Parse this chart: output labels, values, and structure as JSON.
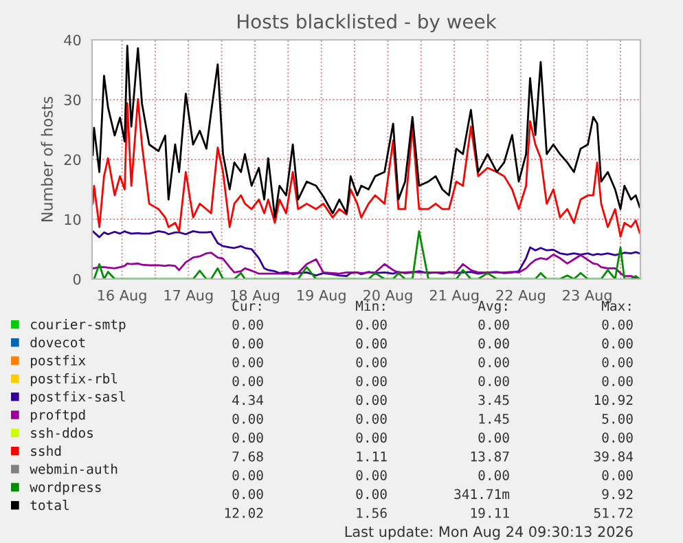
{
  "chart_data": {
    "type": "line",
    "title": "Hosts blacklisted - by week",
    "ylabel": "Number of hosts",
    "x": [
      "2026-08-16T01:26",
      "2026-08-16T01:55",
      "2026-08-16T03:50",
      "2026-08-16T05:31",
      "2026-08-16T06:58",
      "2026-08-16T09:22",
      "2026-08-16T11:17",
      "2026-08-16T12:58",
      "2026-08-16T13:55",
      "2026-08-16T15:22",
      "2026-08-16T17:46",
      "2026-08-16T19:12",
      "2026-08-16T21:50",
      "2026-08-17T01:12",
      "2026-08-17T03:36",
      "2026-08-17T04:48",
      "2026-08-17T07:12",
      "2026-08-17T08:38",
      "2026-08-17T11:02",
      "2026-08-17T13:41",
      "2026-08-17T16:05",
      "2026-08-17T18:29",
      "2026-08-17T20:10",
      "2026-08-17T22:34",
      "2026-08-18T00:29",
      "2026-08-18T02:53",
      "2026-08-18T04:34",
      "2026-08-18T06:58",
      "2026-08-18T08:24",
      "2026-08-18T10:48",
      "2026-08-18T13:26",
      "2026-08-18T15:22",
      "2026-08-18T16:48",
      "2026-08-18T19:12",
      "2026-08-18T20:53",
      "2026-08-18T23:17",
      "2026-08-19T01:41",
      "2026-08-19T03:36",
      "2026-08-19T06:43",
      "2026-08-19T10:05",
      "2026-08-19T12:43",
      "2026-08-19T16:05",
      "2026-08-19T18:29",
      "2026-08-19T21:07",
      "2026-08-19T22:34",
      "2026-08-20T00:58",
      "2026-08-20T02:24",
      "2026-08-20T05:02",
      "2026-08-20T07:26",
      "2026-08-20T10:48",
      "2026-08-20T13:55",
      "2026-08-20T15:50",
      "2026-08-20T18:14",
      "2026-08-20T20:53",
      "2026-08-20T23:17",
      "2026-08-21T02:38",
      "2026-08-21T05:17",
      "2026-08-21T07:41",
      "2026-08-21T10:05",
      "2026-08-21T12:43",
      "2026-08-21T15:07",
      "2026-08-21T18:00",
      "2026-08-21T20:38",
      "2026-08-22T00:00",
      "2026-08-22T03:22",
      "2026-08-22T06:00",
      "2026-08-22T08:53",
      "2026-08-22T11:17",
      "2026-08-22T13:55",
      "2026-08-22T15:22",
      "2026-08-22T17:17",
      "2026-08-22T19:12",
      "2026-08-22T21:22",
      "2026-08-22T23:46",
      "2026-08-23T02:10",
      "2026-08-23T04:48",
      "2026-08-23T07:12",
      "2026-08-23T09:36",
      "2026-08-23T12:14",
      "2026-08-23T14:10",
      "2026-08-23T15:36",
      "2026-08-23T17:02",
      "2026-08-23T19:26",
      "2026-08-23T22:05",
      "2026-08-24T00:00",
      "2026-08-24T01:26",
      "2026-08-24T03:50",
      "2026-08-24T05:31",
      "2026-08-24T06:58"
    ],
    "xlim": [
      "2026-08-16T01:12",
      "2026-08-24T07:12"
    ],
    "xticks": [
      {
        "value": "2026-08-16T12:00",
        "label": "16 Aug"
      },
      {
        "value": "2026-08-17T00:00",
        "label": null
      },
      {
        "value": "2026-08-17T12:00",
        "label": "17 Aug"
      },
      {
        "value": "2026-08-18T00:00",
        "label": null
      },
      {
        "value": "2026-08-18T12:00",
        "label": "18 Aug"
      },
      {
        "value": "2026-08-19T00:00",
        "label": null
      },
      {
        "value": "2026-08-19T12:00",
        "label": "19 Aug"
      },
      {
        "value": "2026-08-20T00:00",
        "label": null
      },
      {
        "value": "2026-08-20T12:00",
        "label": "20 Aug"
      },
      {
        "value": "2026-08-21T00:00",
        "label": null
      },
      {
        "value": "2026-08-21T12:00",
        "label": "21 Aug"
      },
      {
        "value": "2026-08-22T00:00",
        "label": null
      },
      {
        "value": "2026-08-22T12:00",
        "label": "22 Aug"
      },
      {
        "value": "2026-08-23T00:00",
        "label": null
      },
      {
        "value": "2026-08-23T12:00",
        "label": "23 Aug"
      },
      {
        "value": "2026-08-24T00:00",
        "label": null
      }
    ],
    "ylim": [
      0,
      40
    ],
    "yticks": [
      0,
      10,
      20,
      30,
      40
    ],
    "grid": true,
    "legend": "bottom",
    "series": [
      {
        "name": "courier-smtp",
        "color": "#00cc00",
        "values": [
          null,
          null,
          null,
          null,
          null,
          null,
          null,
          null,
          null,
          null,
          null,
          null,
          null,
          null,
          null,
          null,
          null,
          null,
          null,
          null,
          null,
          null,
          null,
          null,
          null,
          null,
          null,
          null,
          null,
          null,
          null,
          null,
          null,
          null,
          null,
          null,
          null,
          null,
          null,
          null,
          null,
          null,
          null,
          null,
          null,
          null,
          null,
          null,
          null,
          null,
          null,
          null,
          null,
          null,
          null,
          null,
          null,
          null,
          null,
          null,
          null,
          null,
          null,
          null,
          null,
          null,
          null,
          null,
          null,
          null,
          null,
          null,
          null,
          null,
          null,
          null,
          null,
          null,
          null,
          null,
          null,
          null,
          null,
          null,
          null,
          null,
          null,
          null,
          null
        ]
      },
      {
        "name": "dovecot",
        "color": "#0066b3",
        "values": [
          null,
          null,
          null,
          null,
          null,
          null,
          null,
          null,
          null,
          null,
          null,
          null,
          null,
          null,
          null,
          null,
          null,
          null,
          null,
          null,
          null,
          null,
          null,
          null,
          null,
          null,
          null,
          null,
          null,
          null,
          null,
          null,
          null,
          null,
          null,
          null,
          null,
          null,
          null,
          null,
          null,
          null,
          null,
          null,
          null,
          null,
          null,
          null,
          null,
          null,
          null,
          null,
          null,
          null,
          null,
          null,
          null,
          null,
          null,
          null,
          null,
          null,
          null,
          null,
          null,
          null,
          null,
          null,
          null,
          null,
          null,
          null,
          null,
          null,
          null,
          null,
          null,
          null,
          null,
          null,
          null,
          null,
          null,
          null,
          null,
          null,
          null,
          null,
          null
        ]
      },
      {
        "name": "postfix",
        "color": "#ff8000",
        "values": [
          null,
          null,
          null,
          null,
          null,
          null,
          null,
          null,
          null,
          null,
          null,
          null,
          null,
          null,
          null,
          null,
          null,
          null,
          null,
          null,
          null,
          null,
          null,
          null,
          null,
          null,
          null,
          null,
          null,
          null,
          null,
          null,
          null,
          null,
          null,
          null,
          null,
          null,
          null,
          null,
          null,
          null,
          null,
          null,
          null,
          null,
          null,
          null,
          null,
          null,
          null,
          null,
          null,
          null,
          null,
          null,
          null,
          null,
          null,
          null,
          null,
          null,
          null,
          null,
          null,
          null,
          null,
          null,
          null,
          null,
          null,
          null,
          null,
          null,
          null,
          null,
          null,
          null,
          null,
          null,
          null,
          null,
          null,
          null,
          null,
          null,
          null,
          null,
          null
        ]
      },
      {
        "name": "postfix-rbl",
        "color": "#ffcc00",
        "values": [
          null,
          null,
          null,
          null,
          null,
          null,
          null,
          null,
          null,
          null,
          null,
          null,
          null,
          null,
          null,
          null,
          null,
          null,
          null,
          null,
          null,
          null,
          null,
          null,
          null,
          null,
          null,
          null,
          null,
          null,
          null,
          null,
          null,
          null,
          null,
          null,
          null,
          null,
          null,
          null,
          null,
          null,
          null,
          null,
          null,
          null,
          null,
          null,
          null,
          null,
          null,
          null,
          null,
          null,
          null,
          null,
          null,
          null,
          null,
          null,
          null,
          null,
          null,
          null,
          null,
          null,
          null,
          null,
          null,
          null,
          null,
          null,
          null,
          null,
          null,
          null,
          null,
          null,
          null,
          null,
          null,
          null,
          null,
          null,
          null,
          null,
          null,
          null,
          null
        ]
      },
      {
        "name": "postfix-sasl",
        "color": "#330099",
        "values": [
          8,
          7.8,
          7,
          7.8,
          7.5,
          7.9,
          7.6,
          8,
          7.8,
          7.6,
          7.7,
          7.6,
          7.6,
          8,
          7.8,
          7.5,
          7.8,
          7.8,
          7.5,
          8,
          7.8,
          7.8,
          7.9,
          6,
          5.5,
          5.3,
          5.2,
          5.5,
          5.2,
          5,
          3.5,
          1.8,
          1.5,
          1.3,
          1,
          1.2,
          0.8,
          1,
          1.1,
          0.6,
          1,
          0.8,
          0.6,
          0.5,
          1,
          1.1,
          0.8,
          1.2,
          1,
          1.1,
          0.9,
          1.2,
          1,
          1.1,
          1.3,
          1,
          1.1,
          0.9,
          1.2,
          1,
          1.1,
          1.2,
          0.9,
          1.1,
          1.2,
          1,
          1.1,
          1.3,
          3.5,
          5.3,
          4.8,
          5.2,
          4.8,
          4.9,
          4.3,
          4.1,
          4.3,
          4.1,
          4.3,
          4,
          4.2,
          4.1,
          4.3,
          4,
          4.2,
          4.4,
          4.3,
          4.5,
          4.3
        ]
      },
      {
        "name": "proftpd",
        "color": "#990099",
        "values": [
          1.8,
          1.8,
          2,
          2,
          1.9,
          1.8,
          2,
          2.2,
          2.6,
          2.5,
          2.6,
          2.4,
          2.3,
          2.3,
          2.2,
          2.3,
          2.2,
          1.5,
          2.8,
          3.6,
          3.8,
          4.3,
          4.4,
          3.6,
          3.4,
          2,
          1.1,
          1.3,
          1.8,
          1.4,
          0.9,
          0.9,
          0.9,
          0.9,
          0.9,
          0.9,
          1,
          1,
          2.5,
          3.3,
          1.1,
          1,
          0.9,
          1.1,
          1.1,
          1.1,
          1,
          1.1,
          1.1,
          2.5,
          1.5,
          1.1,
          1.1,
          1.2,
          1.1,
          1.1,
          1.1,
          1.1,
          1.1,
          1.2,
          2.5,
          1.5,
          1.1,
          1.1,
          1.1,
          1.1,
          1.2,
          1.1,
          1.8,
          2.5,
          3.2,
          3.5,
          3.3,
          4.1,
          3.5,
          2.6,
          3.3,
          4,
          3.2,
          2.6,
          2.5,
          2,
          1.8,
          1.8,
          1,
          0.5,
          0.5,
          0.2,
          0
        ]
      },
      {
        "name": "ssh-ddos",
        "color": "#ccff00",
        "values": [
          null,
          null,
          null,
          null,
          null,
          null,
          null,
          null,
          null,
          null,
          null,
          null,
          null,
          null,
          null,
          null,
          null,
          null,
          null,
          null,
          null,
          null,
          null,
          null,
          null,
          null,
          null,
          null,
          null,
          null,
          null,
          null,
          null,
          null,
          null,
          null,
          null,
          null,
          null,
          null,
          null,
          null,
          null,
          null,
          null,
          null,
          null,
          null,
          null,
          null,
          null,
          null,
          null,
          null,
          null,
          null,
          null,
          null,
          null,
          null,
          null,
          null,
          null,
          null,
          null,
          null,
          null,
          null,
          null,
          null,
          null,
          null,
          null,
          null,
          null,
          null,
          null,
          null,
          null,
          null,
          null,
          null,
          null,
          null,
          null,
          null,
          null,
          null,
          null
        ]
      },
      {
        "name": "sshd",
        "color": "#ff0000",
        "values": [
          12.6,
          15.6,
          8.7,
          17.2,
          20.2,
          14,
          17.2,
          15,
          29.4,
          15.6,
          30.1,
          22.5,
          12.6,
          11.7,
          10.3,
          8.7,
          9.4,
          8,
          17.9,
          10.3,
          12.6,
          11.7,
          11,
          22,
          17.9,
          8.7,
          12.6,
          14,
          12.6,
          11.7,
          13.3,
          11,
          13.3,
          9.4,
          13.3,
          11,
          17.9,
          11.7,
          12.6,
          11.7,
          12.6,
          10.3,
          11.7,
          10.8,
          15,
          12.6,
          10.3,
          12.6,
          14,
          12.6,
          23.2,
          11.7,
          11.7,
          25.5,
          11.7,
          11.7,
          12.6,
          11.7,
          11.7,
          16.3,
          15.6,
          25.5,
          17.2,
          18.6,
          17.9,
          17.2,
          15,
          11.7,
          15.6,
          26.4,
          22.5,
          20.2,
          12.6,
          15,
          10.3,
          11.7,
          9.4,
          13.3,
          14,
          14,
          19.5,
          12.6,
          8.7,
          11.7,
          7.1,
          9.4,
          8.7,
          9.8,
          7.7
        ]
      },
      {
        "name": "webmin-auth",
        "color": "#808080",
        "values": [
          null,
          null,
          null,
          null,
          null,
          null,
          null,
          null,
          null,
          null,
          null,
          null,
          null,
          null,
          null,
          null,
          null,
          null,
          null,
          null,
          null,
          null,
          null,
          null,
          null,
          null,
          null,
          null,
          null,
          null,
          null,
          null,
          null,
          null,
          null,
          null,
          null,
          null,
          null,
          null,
          null,
          null,
          null,
          null,
          null,
          null,
          null,
          null,
          null,
          null,
          null,
          null,
          null,
          null,
          null,
          null,
          null,
          null,
          null,
          null,
          null,
          null,
          null,
          null,
          null,
          null,
          null,
          null,
          null,
          null,
          null,
          null,
          null,
          null,
          null,
          null,
          null,
          null,
          null,
          null,
          null,
          null,
          null,
          null,
          null,
          null,
          null,
          null,
          null
        ]
      },
      {
        "name": "wordpress",
        "color": "#008f00",
        "values": [
          0,
          0,
          2.5,
          0,
          1.2,
          0,
          0,
          0,
          0,
          0,
          0,
          0,
          0,
          0,
          0,
          0,
          0,
          0,
          0,
          0,
          1.4,
          0,
          0,
          1.8,
          0,
          0,
          0,
          1,
          0,
          0,
          0,
          0,
          0,
          0,
          0,
          0,
          0,
          0,
          2,
          0,
          0,
          0,
          0,
          0,
          0,
          0,
          0,
          0,
          1,
          0,
          0,
          1,
          0,
          0,
          8,
          0,
          0,
          0,
          0,
          0,
          1.5,
          0,
          0,
          1,
          0,
          0,
          0,
          0,
          0,
          0,
          0,
          1,
          0,
          0,
          0,
          0.6,
          0,
          1,
          0,
          0,
          0,
          0,
          1.5,
          0,
          5.3,
          0,
          0,
          0.5,
          0
        ]
      },
      {
        "name": "total",
        "color": "#000000",
        "values": [
          20.7,
          25.3,
          17.9,
          34,
          28.7,
          24,
          27,
          23,
          39,
          25.5,
          38.6,
          29.4,
          22.5,
          21.4,
          24,
          13.3,
          22.5,
          17.9,
          31,
          22.5,
          24.8,
          21.8,
          27.8,
          35.9,
          20.9,
          15,
          19.5,
          17.9,
          20.9,
          15.6,
          18.6,
          13.3,
          20.2,
          10.3,
          15.6,
          14,
          22.5,
          13.3,
          16.3,
          15.6,
          13.8,
          11,
          13.3,
          11,
          17.2,
          14,
          15.6,
          15,
          17.2,
          17.9,
          26,
          13.3,
          16.3,
          27.1,
          15.6,
          16.3,
          17.2,
          15,
          14,
          21.8,
          20.9,
          28.3,
          17.9,
          20.9,
          17.9,
          19.5,
          24.1,
          16.3,
          20.9,
          33.6,
          24.1,
          36.3,
          20.9,
          22.5,
          20.9,
          19.5,
          17.9,
          21.8,
          22.5,
          27.1,
          26,
          16.3,
          17.9,
          15,
          11.7,
          15.6,
          13.3,
          14,
          12
        ]
      }
    ],
    "annotations": [
      "Cur:",
      "Min:",
      "Avg:",
      "Max:",
      "0.00",
      "0.00",
      "0.00",
      "0.00",
      "0.00",
      "0.00",
      "0.00",
      "0.00",
      "0.00",
      "0.00",
      "0.00",
      "0.00",
      "0.00",
      "0.00",
      "0.00",
      "0.00",
      "4.34",
      "0.00",
      "3.45",
      "10.92",
      "0.00",
      "0.00",
      "1.45",
      "5.00",
      "0.00",
      "0.00",
      "0.00",
      "0.00",
      "7.68",
      "1.11",
      "13.87",
      "39.84",
      "0.00",
      "0.00",
      "0.00",
      "0.00",
      "0.00",
      "0.00",
      "341.71m",
      "9.92",
      "12.02",
      "1.56",
      "19.11",
      "51.72",
      "Last update: Mon Aug 24 09:30:13 2026"
    ]
  }
}
